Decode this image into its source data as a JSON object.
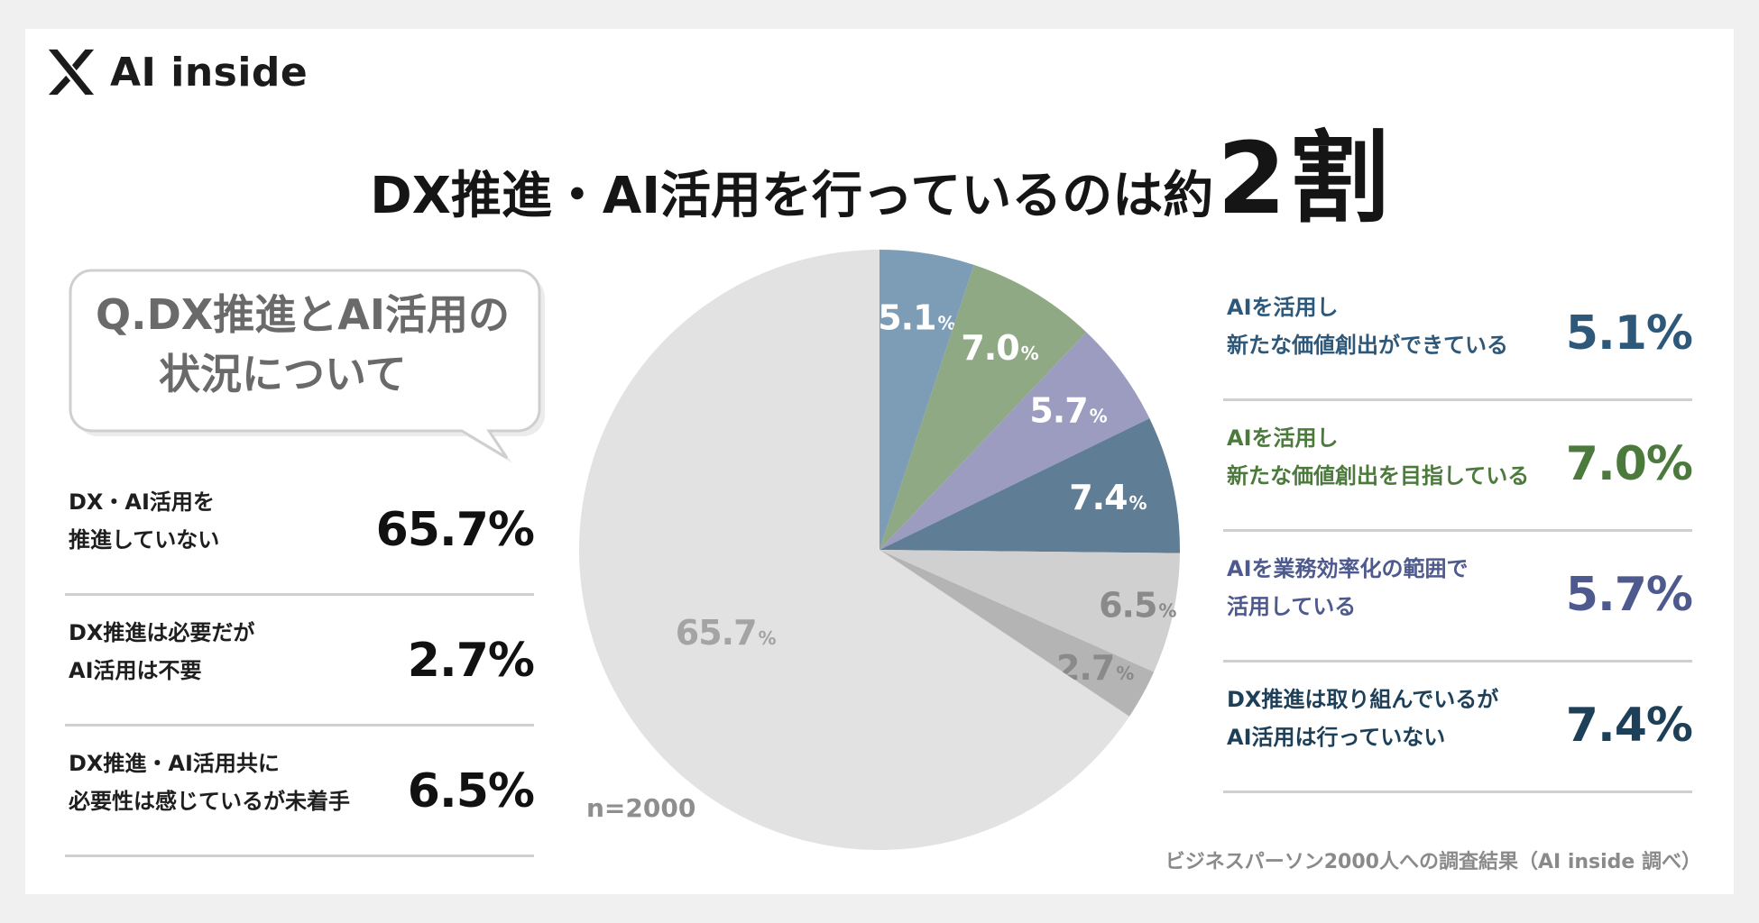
{
  "brand": {
    "name": "AI inside",
    "icon": "x-logo-icon"
  },
  "title": {
    "main": "DX推進・AI活用を行っているのは約",
    "emphasis_number": "2",
    "emphasis_unit": "割"
  },
  "question": {
    "line1": "Q.DX推進とAI活用の",
    "line2": "状況について"
  },
  "n_label": "n=2000",
  "footnote": "ビジネスパーソン2000人への調査結果（AI inside 調べ）",
  "colors": {
    "s1": "#7d9db7",
    "s2": "#8fa985",
    "s3": "#9b9cc0",
    "s4": "#5f7e95",
    "s5": "#d0d0d0",
    "s6": "#b4b4b4",
    "s7": "#e2e2e2"
  },
  "chart_data": {
    "type": "pie",
    "start": "12 o'clock, clockwise",
    "slices": [
      {
        "label": "AIを活用し新たな価値創出ができている",
        "value": 5.1,
        "display": "5.1",
        "color": "#7d9db7"
      },
      {
        "label": "AIを活用し新たな価値創出を目指している",
        "value": 7.0,
        "display": "7.0",
        "color": "#8fa985"
      },
      {
        "label": "AIを業務効率化の範囲で活用している",
        "value": 5.7,
        "display": "5.7",
        "color": "#9b9cc0"
      },
      {
        "label": "DX推進は取り組んでいるがAI活用は行っていない",
        "value": 7.4,
        "display": "7.4",
        "color": "#5f7e95"
      },
      {
        "label": "DX推進・AI活用共に必要性は感じているが未着手",
        "value": 6.5,
        "display": "6.5",
        "color": "#d0d0d0"
      },
      {
        "label": "DX推進は必要だがAI活用は不要",
        "value": 2.7,
        "display": "2.7",
        "color": "#b4b4b4"
      },
      {
        "label": "DX・AI活用を推進していない",
        "value": 65.7,
        "display": "65.7",
        "color": "#e2e2e2"
      }
    ],
    "unit": "%"
  },
  "left_items": [
    {
      "line1": "DX・AI活用を",
      "line2": "推進していない",
      "value": "65.7%"
    },
    {
      "line1": "DX推進は必要だが",
      "line2": "AI活用は不要",
      "value": "2.7%"
    },
    {
      "line1": "DX推進・AI活用共に",
      "line2": "必要性は感じているが未着手",
      "value": "6.5%"
    }
  ],
  "right_items": [
    {
      "line1": "AIを活用し",
      "line2": "新たな価値創出ができている",
      "value": "5.1%",
      "color": "#2e5879"
    },
    {
      "line1": "AIを活用し",
      "line2": "新たな価値創出を目指している",
      "value": "7.0%",
      "color": "#4b7a3c"
    },
    {
      "line1": "AIを業務効率化の範囲で",
      "line2": "活用している",
      "value": "5.7%",
      "color": "#4e5a8e"
    },
    {
      "line1": "DX推進は取り組んでいるが",
      "line2": "AI活用は行っていない",
      "value": "7.4%",
      "color": "#1e3f58"
    }
  ]
}
